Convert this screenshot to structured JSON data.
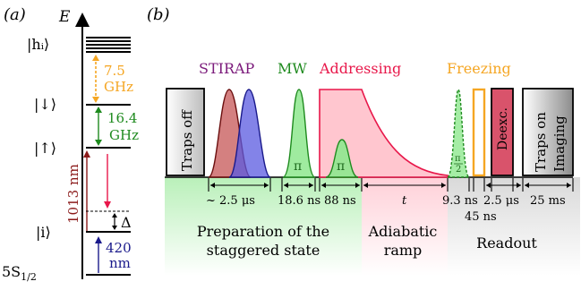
{
  "panel_a": {
    "panel_label": "(a)",
    "axis_label": "E",
    "level_labels": {
      "hi": "|hᵢ⟩",
      "down": "|↓⟩",
      "up": "|↑⟩",
      "i": "|i⟩",
      "ground_main": "5S",
      "ground_sub": "1/2"
    },
    "gap_labels": {
      "freq_7_5": "7.5",
      "ghz_1": "GHz",
      "freq_16_4": "16.4",
      "ghz_2": "GHz",
      "wavelength_1013": "1013 nm",
      "delta": "Δ",
      "wavelength_420": "420",
      "nm": "nm"
    }
  },
  "panel_b": {
    "panel_label": "(b)",
    "blocks": {
      "traps_off": "Traps off",
      "deexc": "Deexc.",
      "traps_on": "Traps on",
      "imaging": "Imaging"
    },
    "pulse_labels": {
      "stirap": "STIRAP",
      "mw": "MW",
      "addressing": "Addressing",
      "freezing": "Freezing",
      "pi_mw": "π",
      "pi_addr": "π",
      "pi_half_num": "π",
      "pi_half_den": "2"
    },
    "durations": {
      "stirap": "~ 2.5 μs",
      "mw": "18.6 ns",
      "addressing": "88 ns",
      "ramp": "t",
      "freezing": "9.3 ns",
      "gap": "45 ns",
      "deexc": "2.5 μs",
      "imaging": "25 ms"
    },
    "phases": {
      "prep_line1": "Preparation of the",
      "prep_line2": "staggered state",
      "ramp_line1": "Adiabatic",
      "ramp_line2": "ramp",
      "readout": "Readout"
    },
    "colors": {
      "stirap": "#7b1a7b",
      "mw": "#1e8a1e",
      "addressing": "#e8174a",
      "freezing": "#f5a623",
      "pulse_red": "#b22222",
      "pulse_blue": "#2f2fbf",
      "wavelength_red": "#8b1a1a",
      "wavelength_blue": "#1a1a8b",
      "freq_orange": "#f5a623",
      "freq_green": "#1e8a1e",
      "deexc_fill": "#d9536b"
    }
  }
}
